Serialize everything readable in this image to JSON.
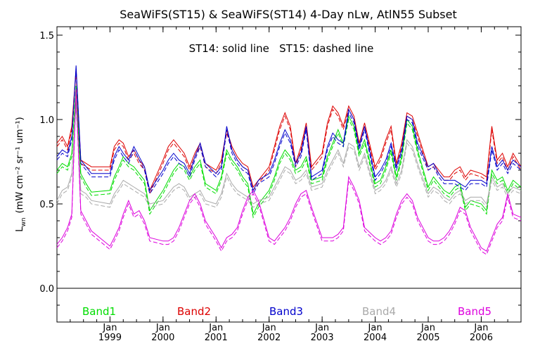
{
  "chart_data": {
    "type": "line",
    "title": "SeaWiFS(ST15) & SeaWiFS(ST14) 4-Day nLw, AtlN55 Subset",
    "subtitle": "ST14: solid line   ST15: dashed line",
    "ylabel_main": "L",
    "ylabel_sub": "wn",
    "ylabel_units": "(mW cm⁻² sr⁻¹ um⁻¹)",
    "ylim": [
      -0.2,
      1.55
    ],
    "y_ticks": [
      "0.0",
      "0.5",
      "1.0",
      "1.5"
    ],
    "y_tick_values": [
      0.0,
      0.5,
      1.0,
      1.5
    ],
    "zero_line": 0.0,
    "xlim": [
      1998.0,
      2006.75
    ],
    "x_tick_labels": [
      {
        "month": "Jan",
        "year": "1999",
        "x": 1999.0
      },
      {
        "month": "Jan",
        "year": "2000",
        "x": 2000.0
      },
      {
        "month": "Jan",
        "year": "2001",
        "x": 2001.0
      },
      {
        "month": "Jan",
        "year": "2002",
        "x": 2002.0
      },
      {
        "month": "Jan",
        "year": "2003",
        "x": 2003.0
      },
      {
        "month": "Jan",
        "year": "2004",
        "x": 2004.0
      },
      {
        "month": "Jan",
        "year": "2005",
        "x": 2005.0
      },
      {
        "month": "Jan",
        "year": "2006",
        "x": 2006.0
      }
    ],
    "series": [
      {
        "name": "Band1",
        "color": "#00dd00",
        "x": [
          1998.0,
          1998.1,
          1998.2,
          1998.28,
          1998.36,
          1998.45,
          1998.55,
          1998.65,
          1999.0,
          1999.08,
          1999.17,
          1999.25,
          1999.35,
          1999.45,
          1999.55,
          1999.65,
          1999.75,
          2000.0,
          2000.1,
          2000.2,
          2000.3,
          2000.4,
          2000.5,
          2000.6,
          2000.7,
          2000.8,
          2001.0,
          2001.1,
          2001.2,
          2001.3,
          2001.4,
          2001.5,
          2001.6,
          2001.7,
          2001.8,
          2002.0,
          2002.1,
          2002.2,
          2002.3,
          2002.4,
          2002.5,
          2002.6,
          2002.7,
          2002.8,
          2003.0,
          2003.1,
          2003.2,
          2003.3,
          2003.4,
          2003.5,
          2003.6,
          2003.7,
          2003.8,
          2004.0,
          2004.1,
          2004.2,
          2004.3,
          2004.4,
          2004.5,
          2004.6,
          2004.7,
          2004.8,
          2005.0,
          2005.1,
          2005.2,
          2005.3,
          2005.4,
          2005.5,
          2005.6,
          2005.7,
          2005.8,
          2006.0,
          2006.1,
          2006.2,
          2006.3,
          2006.4,
          2006.5,
          2006.6,
          2006.75
        ],
        "values": [
          0.7,
          0.74,
          0.72,
          0.8,
          1.2,
          0.68,
          0.62,
          0.57,
          0.58,
          0.66,
          0.72,
          0.78,
          0.74,
          0.72,
          0.68,
          0.64,
          0.46,
          0.58,
          0.64,
          0.7,
          0.74,
          0.72,
          0.66,
          0.72,
          0.76,
          0.62,
          0.58,
          0.66,
          0.82,
          0.76,
          0.72,
          0.66,
          0.62,
          0.44,
          0.5,
          0.58,
          0.66,
          0.76,
          0.82,
          0.78,
          0.7,
          0.72,
          0.78,
          0.64,
          0.66,
          0.78,
          0.86,
          0.94,
          0.86,
          1.02,
          0.96,
          0.8,
          0.88,
          0.62,
          0.64,
          0.72,
          0.82,
          0.66,
          0.78,
          1.0,
          0.96,
          0.82,
          0.6,
          0.66,
          0.62,
          0.58,
          0.56,
          0.6,
          0.62,
          0.48,
          0.52,
          0.5,
          0.46,
          0.7,
          0.64,
          0.66,
          0.58,
          0.64,
          0.6
        ]
      },
      {
        "name": "Band2",
        "color": "#dd0000",
        "x": [
          1998.0,
          1998.1,
          1998.2,
          1998.28,
          1998.36,
          1998.45,
          1998.55,
          1998.65,
          1999.0,
          1999.08,
          1999.17,
          1999.25,
          1999.35,
          1999.45,
          1999.55,
          1999.65,
          1999.75,
          2000.0,
          2000.1,
          2000.2,
          2000.3,
          2000.4,
          2000.5,
          2000.6,
          2000.7,
          2000.8,
          2001.0,
          2001.1,
          2001.2,
          2001.3,
          2001.4,
          2001.5,
          2001.6,
          2001.7,
          2001.8,
          2002.0,
          2002.1,
          2002.2,
          2002.3,
          2002.4,
          2002.5,
          2002.6,
          2002.7,
          2002.8,
          2003.0,
          2003.1,
          2003.2,
          2003.3,
          2003.4,
          2003.5,
          2003.6,
          2003.7,
          2003.8,
          2004.0,
          2004.1,
          2004.2,
          2004.3,
          2004.4,
          2004.5,
          2004.6,
          2004.7,
          2004.8,
          2005.0,
          2005.1,
          2005.2,
          2005.3,
          2005.4,
          2005.5,
          2005.6,
          2005.7,
          2005.8,
          2006.0,
          2006.1,
          2006.2,
          2006.3,
          2006.4,
          2006.5,
          2006.6,
          2006.75
        ],
        "values": [
          0.86,
          0.9,
          0.84,
          0.96,
          1.3,
          0.76,
          0.74,
          0.72,
          0.72,
          0.84,
          0.88,
          0.86,
          0.78,
          0.82,
          0.76,
          0.72,
          0.58,
          0.76,
          0.84,
          0.88,
          0.84,
          0.8,
          0.72,
          0.8,
          0.86,
          0.74,
          0.7,
          0.76,
          0.94,
          0.84,
          0.78,
          0.74,
          0.72,
          0.6,
          0.64,
          0.72,
          0.84,
          0.96,
          1.04,
          0.96,
          0.74,
          0.84,
          0.98,
          0.72,
          0.8,
          0.98,
          1.08,
          1.04,
          0.96,
          1.08,
          1.02,
          0.86,
          0.98,
          0.72,
          0.78,
          0.88,
          0.96,
          0.74,
          0.86,
          1.04,
          1.02,
          0.92,
          0.72,
          0.74,
          0.7,
          0.66,
          0.66,
          0.7,
          0.72,
          0.66,
          0.7,
          0.68,
          0.66,
          0.96,
          0.76,
          0.8,
          0.72,
          0.8,
          0.72
        ]
      },
      {
        "name": "Band3",
        "color": "#0000cc",
        "x": [
          1998.0,
          1998.1,
          1998.2,
          1998.28,
          1998.36,
          1998.45,
          1998.55,
          1998.65,
          1999.0,
          1999.08,
          1999.17,
          1999.25,
          1999.35,
          1999.45,
          1999.55,
          1999.65,
          1999.75,
          2000.0,
          2000.1,
          2000.2,
          2000.3,
          2000.4,
          2000.5,
          2000.6,
          2000.7,
          2000.8,
          2001.0,
          2001.1,
          2001.2,
          2001.3,
          2001.4,
          2001.5,
          2001.6,
          2001.7,
          2001.8,
          2002.0,
          2002.1,
          2002.2,
          2002.3,
          2002.4,
          2002.5,
          2002.6,
          2002.7,
          2002.8,
          2003.0,
          2003.1,
          2003.2,
          2003.3,
          2003.4,
          2003.5,
          2003.6,
          2003.7,
          2003.8,
          2004.0,
          2004.1,
          2004.2,
          2004.3,
          2004.4,
          2004.5,
          2004.6,
          2004.7,
          2004.8,
          2005.0,
          2005.1,
          2005.2,
          2005.3,
          2005.4,
          2005.5,
          2005.6,
          2005.7,
          2005.8,
          2006.0,
          2006.1,
          2006.2,
          2006.3,
          2006.4,
          2006.5,
          2006.6,
          2006.75
        ],
        "values": [
          0.78,
          0.82,
          0.8,
          0.9,
          1.32,
          0.76,
          0.72,
          0.68,
          0.68,
          0.78,
          0.84,
          0.8,
          0.76,
          0.84,
          0.78,
          0.72,
          0.58,
          0.7,
          0.76,
          0.8,
          0.76,
          0.74,
          0.68,
          0.78,
          0.86,
          0.74,
          0.68,
          0.72,
          0.96,
          0.82,
          0.76,
          0.72,
          0.7,
          0.58,
          0.64,
          0.68,
          0.76,
          0.86,
          0.94,
          0.88,
          0.74,
          0.8,
          0.96,
          0.66,
          0.7,
          0.84,
          0.92,
          0.88,
          0.86,
          1.06,
          1.0,
          0.84,
          0.96,
          0.66,
          0.7,
          0.76,
          0.86,
          0.72,
          0.82,
          1.02,
          1.0,
          0.86,
          0.72,
          0.74,
          0.68,
          0.64,
          0.64,
          0.64,
          0.62,
          0.6,
          0.64,
          0.64,
          0.62,
          0.84,
          0.72,
          0.76,
          0.7,
          0.76,
          0.72
        ]
      },
      {
        "name": "Band4",
        "color": "#aaaaaa",
        "x": [
          1998.0,
          1998.1,
          1998.2,
          1998.28,
          1998.36,
          1998.45,
          1998.55,
          1998.65,
          1999.0,
          1999.08,
          1999.17,
          1999.25,
          1999.35,
          1999.45,
          1999.55,
          1999.65,
          1999.75,
          2000.0,
          2000.1,
          2000.2,
          2000.3,
          2000.4,
          2000.5,
          2000.6,
          2000.7,
          2000.8,
          2001.0,
          2001.1,
          2001.2,
          2001.3,
          2001.4,
          2001.5,
          2001.6,
          2001.7,
          2001.8,
          2002.0,
          2002.1,
          2002.2,
          2002.3,
          2002.4,
          2002.5,
          2002.6,
          2002.7,
          2002.8,
          2003.0,
          2003.1,
          2003.2,
          2003.3,
          2003.4,
          2003.5,
          2003.6,
          2003.7,
          2003.8,
          2004.0,
          2004.1,
          2004.2,
          2004.3,
          2004.4,
          2004.5,
          2004.6,
          2004.7,
          2004.8,
          2005.0,
          2005.1,
          2005.2,
          2005.3,
          2005.4,
          2005.5,
          2005.6,
          2005.7,
          2005.8,
          2006.0,
          2006.1,
          2006.2,
          2006.3,
          2006.4,
          2006.5,
          2006.6,
          2006.75
        ],
        "values": [
          0.52,
          0.58,
          0.6,
          0.68,
          1.1,
          0.58,
          0.56,
          0.52,
          0.5,
          0.56,
          0.6,
          0.64,
          0.62,
          0.6,
          0.58,
          0.56,
          0.5,
          0.52,
          0.56,
          0.6,
          0.62,
          0.6,
          0.54,
          0.56,
          0.58,
          0.52,
          0.5,
          0.56,
          0.68,
          0.62,
          0.58,
          0.56,
          0.54,
          0.5,
          0.52,
          0.54,
          0.6,
          0.66,
          0.72,
          0.7,
          0.64,
          0.66,
          0.7,
          0.6,
          0.62,
          0.7,
          0.76,
          0.82,
          0.74,
          0.86,
          0.84,
          0.72,
          0.8,
          0.58,
          0.6,
          0.64,
          0.72,
          0.62,
          0.7,
          0.88,
          0.84,
          0.74,
          0.56,
          0.6,
          0.58,
          0.54,
          0.52,
          0.56,
          0.58,
          0.52,
          0.54,
          0.54,
          0.5,
          0.66,
          0.6,
          0.62,
          0.56,
          0.6,
          0.58
        ]
      },
      {
        "name": "Band5",
        "color": "#dd00dd",
        "x": [
          1998.0,
          1998.1,
          1998.2,
          1998.28,
          1998.36,
          1998.45,
          1998.55,
          1998.65,
          1999.0,
          1999.08,
          1999.17,
          1999.25,
          1999.35,
          1999.45,
          1999.55,
          1999.65,
          1999.75,
          2000.0,
          2000.1,
          2000.2,
          2000.3,
          2000.4,
          2000.5,
          2000.6,
          2000.7,
          2000.8,
          2001.0,
          2001.1,
          2001.2,
          2001.3,
          2001.4,
          2001.5,
          2001.6,
          2001.7,
          2001.8,
          2002.0,
          2002.1,
          2002.2,
          2002.3,
          2002.4,
          2002.5,
          2002.6,
          2002.7,
          2002.8,
          2003.0,
          2003.1,
          2003.2,
          2003.3,
          2003.4,
          2003.5,
          2003.6,
          2003.7,
          2003.8,
          2004.0,
          2004.1,
          2004.2,
          2004.3,
          2004.4,
          2004.5,
          2004.6,
          2004.7,
          2004.8,
          2005.0,
          2005.1,
          2005.2,
          2005.3,
          2005.4,
          2005.5,
          2005.6,
          2005.7,
          2005.8,
          2006.0,
          2006.1,
          2006.2,
          2006.3,
          2006.4,
          2006.5,
          2006.6,
          2006.75
        ],
        "values": [
          0.26,
          0.3,
          0.36,
          0.44,
          1.18,
          0.46,
          0.4,
          0.34,
          0.25,
          0.3,
          0.36,
          0.44,
          0.52,
          0.44,
          0.46,
          0.4,
          0.3,
          0.28,
          0.28,
          0.3,
          0.36,
          0.44,
          0.52,
          0.56,
          0.5,
          0.4,
          0.3,
          0.24,
          0.3,
          0.32,
          0.36,
          0.46,
          0.54,
          0.58,
          0.52,
          0.3,
          0.28,
          0.32,
          0.36,
          0.42,
          0.5,
          0.56,
          0.58,
          0.48,
          0.3,
          0.3,
          0.3,
          0.32,
          0.36,
          0.66,
          0.6,
          0.52,
          0.36,
          0.3,
          0.28,
          0.3,
          0.34,
          0.44,
          0.52,
          0.56,
          0.52,
          0.42,
          0.3,
          0.28,
          0.28,
          0.3,
          0.34,
          0.4,
          0.48,
          0.46,
          0.36,
          0.24,
          0.22,
          0.3,
          0.38,
          0.42,
          0.56,
          0.44,
          0.42
        ]
      }
    ],
    "legend_placement": "bottom, inside plot"
  }
}
